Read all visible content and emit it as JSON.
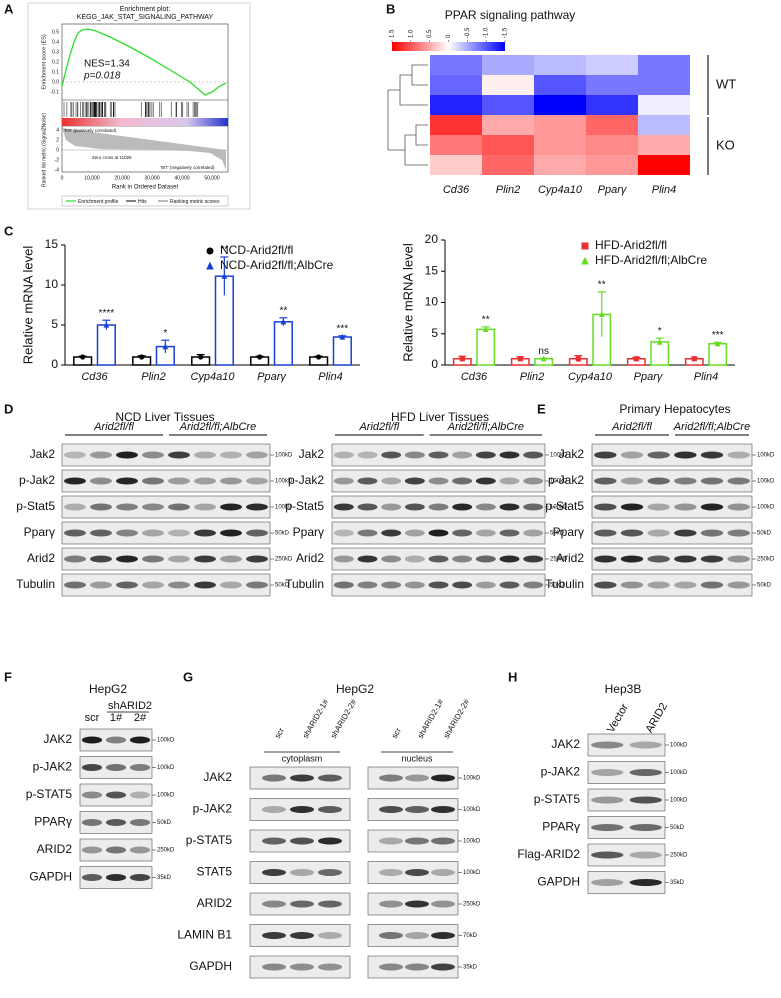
{
  "panel_a": {
    "letter": "A",
    "title_line1": "Enrichment plot:",
    "title_line2": "KEGG_JAK_STAT_SIGNALING_PATHWAY",
    "y_label": "Enrichment score (ES)",
    "nes": "NES=1.34",
    "p": "p=0.018",
    "es_ticks": [
      "0.5",
      "0.4",
      "0.3",
      "0.2",
      "0.1",
      "0.0",
      "-0.1"
    ],
    "metric_label": "Ranked list metric (Signal2Noise)",
    "metric_ticks": [
      "4",
      "2",
      "0",
      "-2",
      "-4"
    ],
    "x_label": "Rank in Ordered Dataset",
    "x_ticks": [
      "0",
      "10,000",
      "20,000",
      "30,000",
      "40,000",
      "50,000"
    ],
    "ko_label": "'KO' (positively correlated)",
    "wt_label": "'WT' (negatively correlated)",
    "zero_cross": "Zero cross at 11026",
    "legend": [
      "Enrichment profile",
      "Hits",
      "Ranking metric scores"
    ]
  },
  "chart_data": [
    {
      "type": "heatmap",
      "letter": "B",
      "title": "PPAR signaling pathway",
      "categories": [
        "Cd36",
        "Plin2",
        "Cyp4a10",
        "Pparγ",
        "Plin4"
      ],
      "groups": [
        "WT",
        "KO"
      ],
      "colorbar_ticks": [
        1.5,
        {
          "value": 1,
          "label": "1.0"
        },
        0.5,
        0,
        -0.5,
        {
          "value": -1,
          "label": "-1.0"
        },
        -1.5
      ],
      "values": [
        [
          -0.8,
          -0.5,
          -0.4,
          -0.3,
          -0.8
        ],
        [
          -0.9,
          0.1,
          -1.0,
          -0.8,
          -0.8
        ],
        [
          -1.3,
          -1.0,
          -1.5,
          -1.2,
          -0.1
        ],
        [
          1.2,
          0.5,
          0.6,
          0.9,
          -0.4
        ],
        [
          0.8,
          1.0,
          0.6,
          0.7,
          0.5
        ],
        [
          0.3,
          0.9,
          0.5,
          0.6,
          1.5
        ]
      ]
    },
    {
      "type": "bar",
      "letter": "C",
      "y_label": "Relative mRNA level",
      "categories": [
        "Cd36",
        "Plin2",
        "Cyp4a10",
        "Pparγ",
        "Plin4"
      ],
      "series": [
        {
          "name": "NCD-Arid2fl/fl",
          "color": "#000000",
          "marker": "circle",
          "values": [
            1,
            1,
            1,
            1,
            1
          ],
          "errors": [
            0.1,
            0.15,
            0.3,
            0.1,
            0.1
          ]
        },
        {
          "name": "NCD-Arid2fl/fl;AlbCre",
          "color": "#1a3fd6",
          "marker": "triangle",
          "values": [
            5.0,
            2.3,
            11.1,
            5.4,
            3.5
          ],
          "errors": [
            0.6,
            0.8,
            2.4,
            0.5,
            0.15
          ]
        }
      ],
      "significance": [
        "****",
        "*",
        "**",
        "**",
        "***"
      ],
      "ylim": [
        0,
        15
      ],
      "yticks": [
        0,
        5,
        10,
        15
      ]
    },
    {
      "type": "bar",
      "y_label": "Relative mRNA level",
      "categories": [
        "Cd36",
        "Plin2",
        "Cyp4a10",
        "Pparγ",
        "Plin4"
      ],
      "series": [
        {
          "name": "HFD-Arid2fl/fl",
          "color": "#e8312f",
          "marker": "square",
          "values": [
            1,
            1,
            1,
            1,
            1
          ],
          "errors": [
            0.4,
            0.3,
            0.5,
            0.2,
            0.1
          ]
        },
        {
          "name": "HFD-Arid2fl/fl;AlbCre",
          "color": "#66dd22",
          "marker": "triangle",
          "values": [
            5.7,
            1.0,
            8.1,
            3.7,
            3.4
          ],
          "errors": [
            0.4,
            0.1,
            3.6,
            0.6,
            0.2
          ]
        }
      ],
      "significance": [
        "**",
        "ns",
        "**",
        "*",
        "***"
      ],
      "ylim": [
        0,
        20
      ],
      "yticks": [
        0,
        5,
        10,
        15,
        20
      ]
    }
  ],
  "blots": [
    {
      "letter": "D",
      "title": "NCD Liver Tissues",
      "groups": [
        "Arid2fl/fl",
        "Arid2fl/fl;AlbCre"
      ],
      "rows": [
        "Jak2",
        "p-Jak2",
        "p-Stat5",
        "Pparγ",
        "Arid2",
        "Tubulin"
      ],
      "markers": [
        "100kD",
        "100kD",
        "100kD",
        "50kD",
        "250kD",
        "50kD"
      ]
    },
    {
      "title": "HFD Liver Tissues",
      "groups": [
        "Arid2fl/fl",
        "Arid2fl/fl;AlbCre"
      ],
      "rows": [
        "Jak2",
        "p-Jak2",
        "p-Stat5",
        "Pparγ",
        "Arid2",
        "Tubulin"
      ],
      "markers": [
        "100kD",
        "100kD",
        "100kD",
        "50kD",
        "250kD",
        "50kD"
      ]
    },
    {
      "letter": "E",
      "title": "Primary Hepatocytes",
      "groups": [
        "Arid2fl/fl",
        "Arid2fl/fl;AlbCre"
      ],
      "rows": [
        "Jak2",
        "p-Jak2",
        "p-Stat5",
        "Pparγ",
        "Arid2",
        "Tubulin"
      ],
      "markers": [
        "100kD",
        "100kD",
        "100kD",
        "50kD",
        "250kD",
        "50kD"
      ]
    },
    {
      "letter": "F",
      "title": "HepG2",
      "group": "shARID2",
      "lanes": [
        "scr",
        "1#",
        "2#"
      ],
      "rows": [
        "JAK2",
        "p-JAK2",
        "p-STAT5",
        "PPARγ",
        "ARID2",
        "GAPDH"
      ],
      "markers": [
        "100kD",
        "100kD",
        "100kD",
        "50kD",
        "250kD",
        "35kD"
      ]
    },
    {
      "letter": "G",
      "title": "HepG2",
      "lanes": [
        "scr",
        "shARID2-1#",
        "shARID2-2#",
        "scr",
        "shARID2-1#",
        "shARID2-2#"
      ],
      "groups": [
        "cytoplasm",
        "nucleus"
      ],
      "rows": [
        "JAK2",
        "p-JAK2",
        "p-STAT5",
        "STAT5",
        "ARID2",
        "LAMIN B1",
        "GAPDH"
      ],
      "markers": [
        "100kD",
        "100kD",
        "100kD",
        "100kD",
        "250kD",
        "70kD",
        "35kD"
      ]
    },
    {
      "letter": "H",
      "title": "Hep3B",
      "lanes": [
        "Vector",
        "ARID2"
      ],
      "rows": [
        "JAK2",
        "p-JAK2",
        "p-STAT5",
        "PPARγ",
        "Flag-ARID2",
        "GAPDH"
      ],
      "markers": [
        "100kD",
        "100kD",
        "100kD",
        "50kD",
        "250kD",
        "35kD"
      ]
    }
  ]
}
